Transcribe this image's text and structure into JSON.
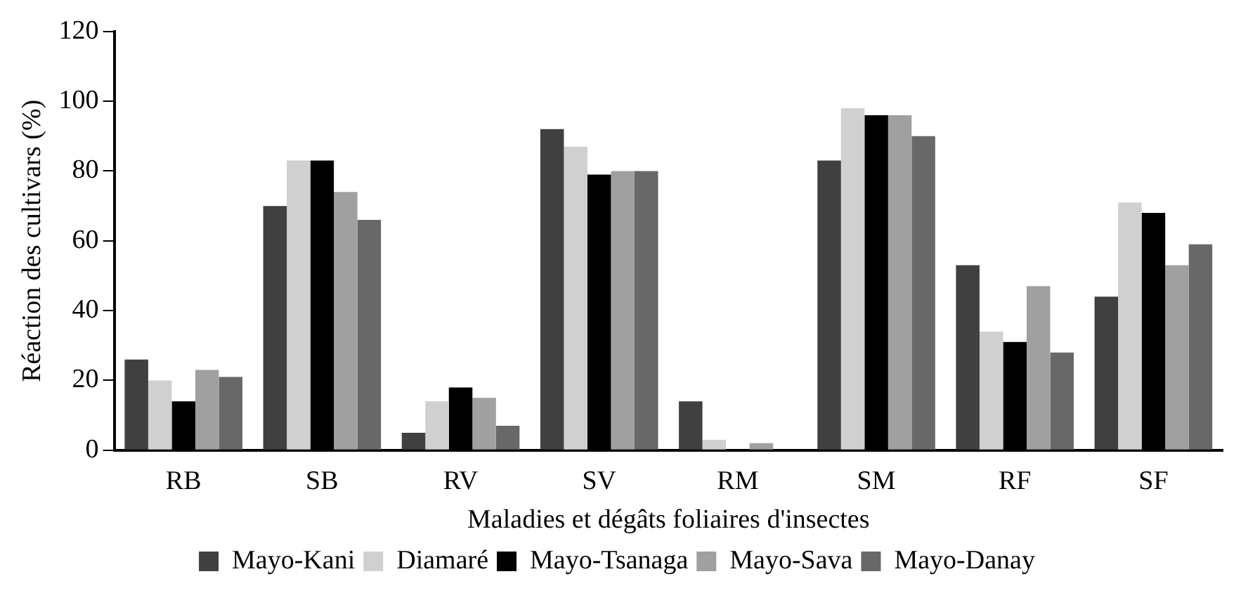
{
  "chart_data": {
    "type": "bar",
    "xlabel": "Maladies et dégâts foliaires d'insectes",
    "ylabel": "Réaction des cultivars (%)",
    "categories": [
      "RB",
      "SB",
      "RV",
      "SV",
      "RM",
      "SM",
      "RF",
      "SF"
    ],
    "series": [
      {
        "name": "Mayo-Kani",
        "color": "#404040",
        "values": [
          26,
          70,
          5,
          92,
          14,
          83,
          53,
          44
        ]
      },
      {
        "name": "Diamaré",
        "color": "#d0d0d0",
        "values": [
          20,
          83,
          14,
          87,
          3,
          98,
          34,
          71
        ]
      },
      {
        "name": "Mayo-Tsanaga",
        "color": "#000000",
        "values": [
          14,
          83,
          18,
          79,
          null,
          96,
          31,
          68
        ]
      },
      {
        "name": "Mayo-Sava",
        "color": "#a0a0a0",
        "values": [
          23,
          74,
          15,
          80,
          2,
          96,
          47,
          53
        ]
      },
      {
        "name": "Mayo-Danay",
        "color": "#686868",
        "values": [
          21,
          66,
          7,
          80,
          null,
          90,
          28,
          59
        ]
      }
    ],
    "ylim": [
      0,
      120
    ],
    "yticks": [
      0,
      20,
      40,
      60,
      80,
      100,
      120
    ],
    "grid": false,
    "legend": "bottom"
  }
}
